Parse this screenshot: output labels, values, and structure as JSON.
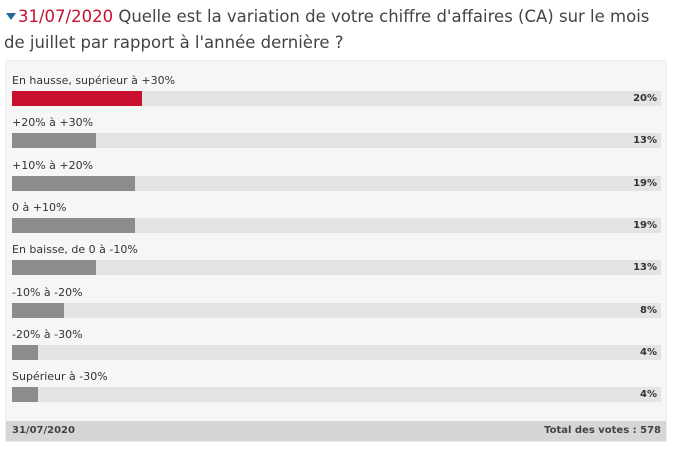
{
  "poll": {
    "date": "31/07/2020",
    "question": "Quelle est la variation de votre chiffre d'affaires (CA) sur le mois de juillet par rapport à l'année dernière ?",
    "footer_date": "31/07/2020",
    "total_votes_label": "Total des votes : 578",
    "colors": {
      "leader_bar": "#c8102e",
      "bar": "#8c8c8c",
      "track": "#e4e4e4"
    }
  },
  "chart_data": {
    "type": "bar",
    "categories": [
      "En hausse, supérieur à +30%",
      "+20% à +30%",
      "+10% à +20%",
      "0 à +10%",
      "En baisse, de 0 à -10%",
      "-10% à -20%",
      "-20% à -30%",
      "Supérieur à -30%"
    ],
    "values": [
      20,
      13,
      19,
      19,
      13,
      8,
      4,
      4
    ],
    "value_labels": [
      "20%",
      "13%",
      "19%",
      "19%",
      "13%",
      "8%",
      "4%",
      "4%"
    ],
    "ylim": [
      0,
      100
    ]
  }
}
